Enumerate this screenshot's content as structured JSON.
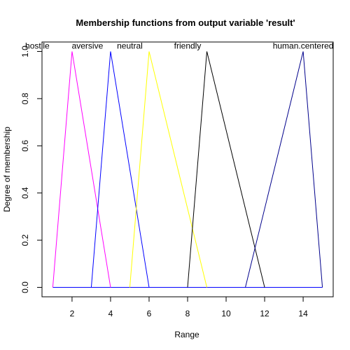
{
  "chart_data": {
    "type": "line",
    "title": "Membership functions from output variable 'result'",
    "xlabel": "Range",
    "ylabel": "Degree of membership",
    "xlim": [
      0.44,
      15.56
    ],
    "ylim": [
      -0.04,
      1.04
    ],
    "xticks": [
      2,
      4,
      6,
      8,
      10,
      12,
      14
    ],
    "yticks": [
      0.0,
      0.2,
      0.4,
      0.6,
      0.8,
      1.0
    ],
    "xtick_labels": [
      "2",
      "4",
      "6",
      "8",
      "10",
      "12",
      "14"
    ],
    "ytick_labels": [
      "0.0",
      "0.2",
      "0.4",
      "0.6",
      "0.8",
      "1.0"
    ],
    "grid": false,
    "series": [
      {
        "name": "hostile",
        "color": "#ff00ff",
        "x": [
          1,
          2,
          4
        ],
        "y": [
          0,
          1,
          0
        ],
        "label_x": 0.2
      },
      {
        "name": "aversive",
        "color": "#0000ff",
        "x": [
          3,
          4,
          6
        ],
        "y": [
          0,
          1,
          0
        ],
        "label_x": 2.8
      },
      {
        "name": "neutral",
        "color": "#ffff00",
        "x": [
          5,
          6,
          9
        ],
        "y": [
          0,
          1,
          0
        ],
        "label_x": 5.0
      },
      {
        "name": "friendly",
        "color": "#000000",
        "x": [
          8,
          9,
          12
        ],
        "y": [
          0,
          1,
          0
        ],
        "label_x": 8.0
      },
      {
        "name": "human.centered",
        "color": "#00008b",
        "x": [
          11,
          14,
          15
        ],
        "y": [
          0,
          1,
          0
        ],
        "label_x": 14.0
      }
    ],
    "baseline": {
      "x": [
        1,
        15
      ],
      "y": [
        0,
        0
      ]
    }
  }
}
